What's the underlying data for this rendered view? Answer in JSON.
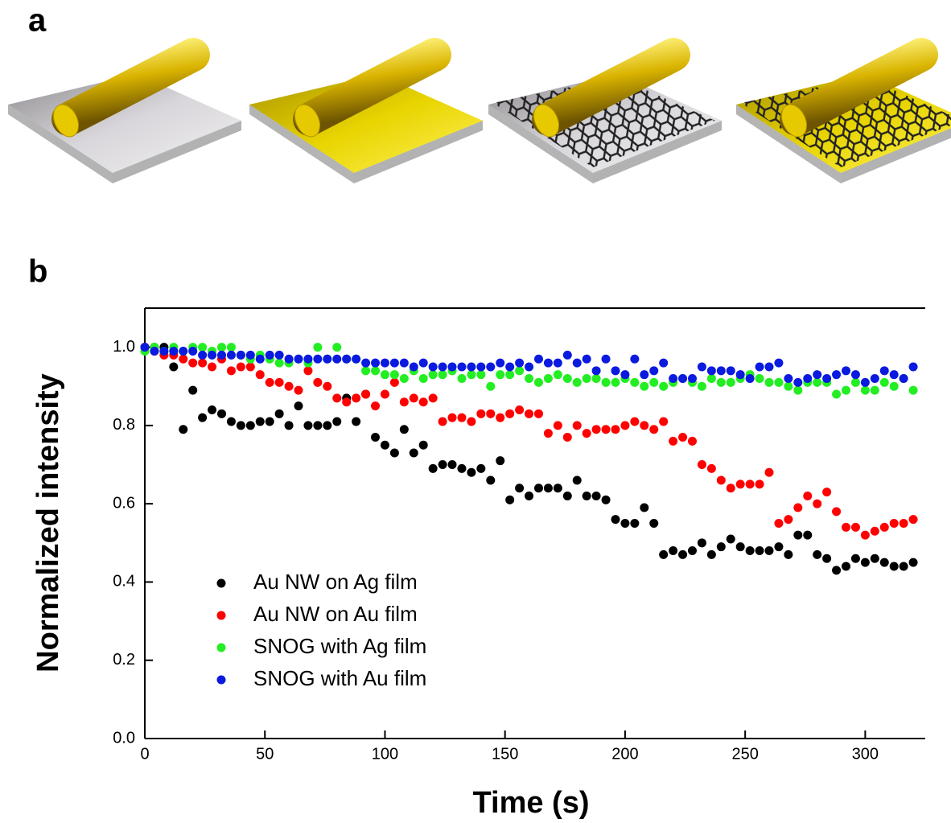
{
  "panel_labels": [
    "a",
    "b"
  ],
  "chart_data": {
    "type": "scatter",
    "x_label": "Time (s)",
    "y_label": "Normalized intensity",
    "x": [
      0,
      4,
      8,
      12,
      16,
      20,
      24,
      28,
      32,
      36,
      40,
      44,
      48,
      52,
      56,
      60,
      64,
      68,
      72,
      76,
      80,
      84,
      88,
      92,
      96,
      100,
      104,
      108,
      112,
      116,
      120,
      124,
      128,
      132,
      136,
      140,
      144,
      148,
      152,
      156,
      160,
      164,
      168,
      172,
      176,
      180,
      184,
      188,
      192,
      196,
      200,
      204,
      208,
      212,
      216,
      220,
      224,
      228,
      232,
      236,
      240,
      244,
      248,
      252,
      256,
      260,
      264,
      268,
      272,
      276,
      280,
      284,
      288,
      292,
      296,
      300,
      304,
      308,
      312,
      316,
      320
    ],
    "series": [
      {
        "name": "Au NW on Ag film",
        "color": "#000000",
        "values": [
          1.0,
          1.0,
          1.0,
          0.95,
          0.79,
          0.89,
          0.82,
          0.84,
          0.83,
          0.81,
          0.8,
          0.8,
          0.81,
          0.81,
          0.83,
          0.8,
          0.85,
          0.8,
          0.8,
          0.8,
          0.81,
          0.87,
          0.81,
          0.88,
          0.77,
          0.75,
          0.73,
          0.79,
          0.73,
          0.75,
          0.69,
          0.7,
          0.7,
          0.69,
          0.68,
          0.69,
          0.66,
          0.71,
          0.61,
          0.64,
          0.62,
          0.64,
          0.64,
          0.64,
          0.62,
          0.66,
          0.62,
          0.62,
          0.61,
          0.56,
          0.55,
          0.55,
          0.59,
          0.55,
          0.47,
          0.48,
          0.47,
          0.48,
          0.5,
          0.47,
          0.49,
          0.51,
          0.49,
          0.48,
          0.48,
          0.48,
          0.49,
          0.47,
          0.52,
          0.52,
          0.47,
          0.46,
          0.43,
          0.44,
          0.46,
          0.45,
          0.46,
          0.45,
          0.44,
          0.44,
          0.45
        ]
      },
      {
        "name": "Au NW on Au film",
        "color": "#ff0000",
        "values": [
          1.0,
          0.99,
          0.98,
          0.98,
          0.97,
          0.96,
          0.96,
          0.95,
          0.97,
          0.94,
          0.95,
          0.95,
          0.93,
          0.91,
          0.91,
          0.9,
          0.89,
          0.94,
          0.91,
          0.9,
          0.87,
          0.86,
          0.87,
          0.88,
          0.85,
          0.88,
          0.91,
          0.86,
          0.87,
          0.86,
          0.87,
          0.81,
          0.82,
          0.82,
          0.81,
          0.83,
          0.83,
          0.82,
          0.83,
          0.84,
          0.83,
          0.83,
          0.78,
          0.8,
          0.77,
          0.8,
          0.78,
          0.79,
          0.79,
          0.79,
          0.8,
          0.81,
          0.8,
          0.79,
          0.81,
          0.76,
          0.77,
          0.76,
          0.7,
          0.69,
          0.66,
          0.64,
          0.65,
          0.65,
          0.65,
          0.68,
          0.55,
          0.56,
          0.59,
          0.62,
          0.6,
          0.63,
          0.58,
          0.54,
          0.54,
          0.52,
          0.53,
          0.54,
          0.55,
          0.55,
          0.56
        ]
      },
      {
        "name": "SNOG with Ag film",
        "color": "#22ee22",
        "values": [
          0.99,
          1.0,
          0.99,
          1.0,
          0.99,
          1.0,
          1.0,
          0.99,
          1.0,
          1.0,
          0.98,
          0.97,
          0.98,
          0.97,
          0.96,
          0.96,
          0.97,
          0.96,
          1.0,
          0.97,
          1.0,
          0.97,
          0.97,
          0.94,
          0.94,
          0.93,
          0.93,
          0.92,
          0.94,
          0.92,
          0.93,
          0.93,
          0.94,
          0.92,
          0.93,
          0.93,
          0.9,
          0.93,
          0.93,
          0.94,
          0.92,
          0.91,
          0.92,
          0.93,
          0.92,
          0.91,
          0.92,
          0.92,
          0.91,
          0.91,
          0.92,
          0.91,
          0.9,
          0.91,
          0.9,
          0.91,
          0.92,
          0.91,
          0.9,
          0.92,
          0.91,
          0.91,
          0.92,
          0.93,
          0.92,
          0.91,
          0.91,
          0.9,
          0.89,
          0.91,
          0.91,
          0.91,
          0.88,
          0.89,
          0.91,
          0.89,
          0.89,
          0.91,
          0.9,
          0.92,
          0.89
        ]
      },
      {
        "name": "SNOG with Au film",
        "color": "#0a1adf",
        "values": [
          1.0,
          0.99,
          0.99,
          0.99,
          0.99,
          0.99,
          0.98,
          0.98,
          0.98,
          0.98,
          0.98,
          0.98,
          0.97,
          0.98,
          0.98,
          0.97,
          0.97,
          0.97,
          0.97,
          0.97,
          0.97,
          0.97,
          0.97,
          0.96,
          0.96,
          0.96,
          0.96,
          0.96,
          0.95,
          0.96,
          0.95,
          0.95,
          0.95,
          0.95,
          0.95,
          0.95,
          0.95,
          0.96,
          0.95,
          0.96,
          0.95,
          0.97,
          0.96,
          0.96,
          0.98,
          0.96,
          0.97,
          0.94,
          0.97,
          0.94,
          0.93,
          0.97,
          0.93,
          0.94,
          0.96,
          0.92,
          0.92,
          0.92,
          0.95,
          0.94,
          0.94,
          0.94,
          0.93,
          0.92,
          0.95,
          0.95,
          0.96,
          0.92,
          0.91,
          0.92,
          0.93,
          0.92,
          0.93,
          0.94,
          0.93,
          0.91,
          0.92,
          0.94,
          0.93,
          0.92,
          0.95
        ]
      }
    ],
    "xlim": [
      0,
      325
    ],
    "ylim": [
      0,
      1.1
    ],
    "xticks": [
      0,
      50,
      100,
      150,
      200,
      250,
      300
    ],
    "yticks": [
      {
        "value": 0,
        "label": "0.0"
      },
      0.2,
      0.4,
      0.6,
      0.8,
      {
        "value": 1,
        "label": "1.0"
      }
    ],
    "legend": "lower left"
  }
}
